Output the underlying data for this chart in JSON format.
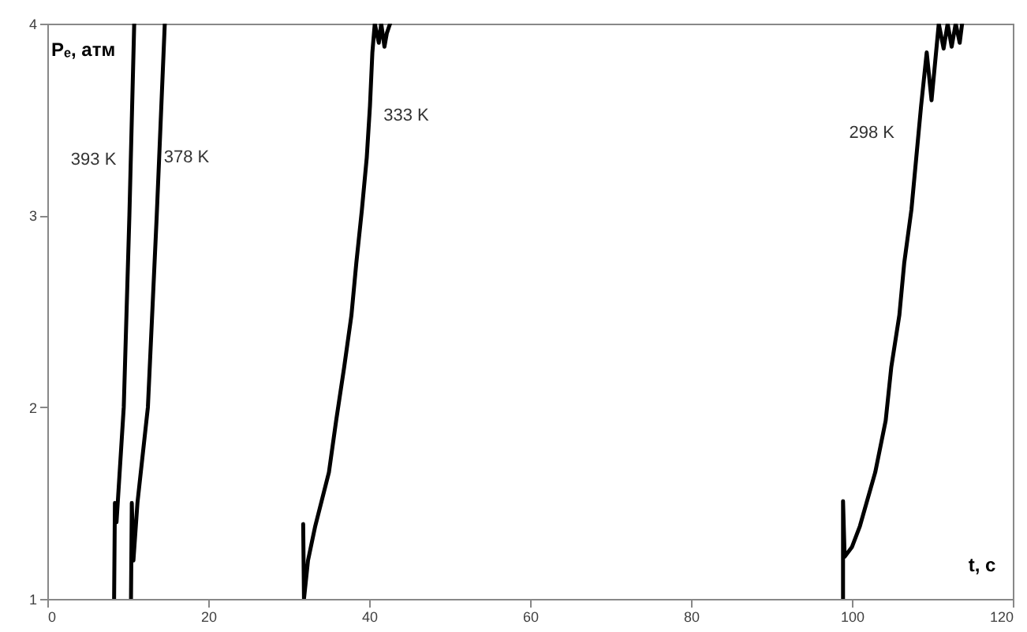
{
  "chart_data": {
    "type": "line",
    "xlabel": "t, c",
    "ylabel": "Pₑ, атм",
    "xlim": [
      0,
      120
    ],
    "xticks": [
      0,
      20,
      40,
      60,
      80,
      100,
      120
    ],
    "ylim": [
      1,
      4
    ],
    "yticks": [
      1,
      2,
      3,
      4
    ],
    "grid": false,
    "marker": "none",
    "line_style": "solid",
    "series": [
      {
        "name": "393 K",
        "color": "#000000",
        "x": [
          8.3,
          8.4,
          8.6,
          9.5,
          10.2,
          10.8
        ],
        "values": [
          1,
          1.5,
          1.4,
          2,
          3,
          4
        ]
      },
      {
        "name": "378 K",
        "color": "#000000",
        "x": [
          10.4,
          10.5,
          10.7,
          11.2,
          12.5,
          13.6,
          13.9,
          14.6
        ],
        "values": [
          1,
          1.5,
          1.2,
          1.5,
          2,
          3,
          3.3,
          4
        ]
      },
      {
        "name": "333 K",
        "color": "#000000",
        "x": [
          31.8,
          31.9,
          32.4,
          33.3,
          35.0,
          35.9,
          36.9,
          37.8,
          38.4,
          39.1,
          39.7,
          40.1,
          40.4,
          40.7,
          41.2,
          41.5,
          41.9,
          42.2,
          42.6
        ],
        "values": [
          1.39,
          1,
          1.2,
          1.38,
          1.66,
          1.93,
          2.21,
          2.48,
          2.75,
          3.03,
          3.3,
          3.57,
          3.85,
          4,
          3.9,
          4,
          3.88,
          3.95,
          4
        ]
      },
      {
        "name": "298 K",
        "color": "#000000",
        "x": [
          98.9,
          98.9,
          99.1,
          100.0,
          101.0,
          102.9,
          104.2,
          104.9,
          105.9,
          106.5,
          107.4,
          108.0,
          108.6,
          109.3,
          109.9,
          110.8,
          111.4,
          111.9,
          112.4,
          112.9,
          113.4,
          113.7
        ],
        "values": [
          1,
          1.51,
          1.22,
          1.27,
          1.38,
          1.66,
          1.93,
          2.21,
          2.48,
          2.75,
          3.03,
          3.3,
          3.57,
          3.85,
          3.6,
          4,
          3.87,
          4,
          3.88,
          4,
          3.9,
          4
        ]
      }
    ]
  }
}
